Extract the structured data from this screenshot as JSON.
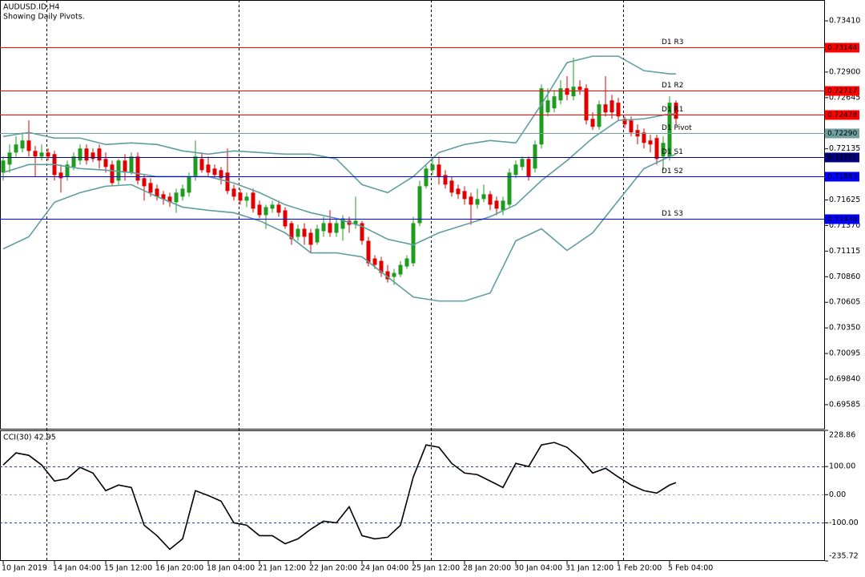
{
  "chart_data": [
    {
      "type": "candlestick",
      "title": "AUDUSD.ID,H4",
      "subtitle": "Showing Daily Pivots.",
      "up_color": "#1e9c1e",
      "down_color": "#e00000",
      "categories": [
        "10 Jan 2019",
        null,
        null,
        null,
        null,
        null,
        null,
        null,
        "14 Jan 04:00",
        null,
        null,
        null,
        null,
        null,
        null,
        null,
        "15 Jan 12:00",
        null,
        null,
        null,
        null,
        null,
        null,
        null,
        "16 Jan 20:00",
        null,
        null,
        null,
        null,
        null,
        null,
        null,
        "18 Jan 04:00",
        null,
        null,
        null,
        null,
        null,
        null,
        null,
        "21 Jan 12:00",
        null,
        null,
        null,
        null,
        null,
        null,
        null,
        "22 Jan 20:00",
        null,
        null,
        null,
        null,
        null,
        null,
        null,
        "24 Jan 04:00",
        null,
        null,
        null,
        null,
        null,
        null,
        null,
        "25 Jan 12:00",
        null,
        null,
        null,
        null,
        null,
        null,
        null,
        "28 Jan 20:00",
        null,
        null,
        null,
        null,
        null,
        null,
        null,
        "30 Jan 04:00",
        null,
        null,
        null,
        null,
        null,
        null,
        null,
        "31 Jan 12:00",
        null,
        null,
        null,
        null,
        null,
        null,
        null,
        "1 Feb 20:00",
        null,
        null,
        null,
        null,
        null,
        null,
        null,
        "5 Feb 04:00",
        null
      ],
      "open": [
        0.71898,
        0.71978,
        0.72098,
        0.72138,
        0.72218,
        0.72114,
        0.72058,
        0.72098,
        0.72082,
        0.71898,
        0.71858,
        0.71954,
        0.72018,
        0.72138,
        0.72098,
        0.72138,
        0.72034,
        0.71978,
        0.71818,
        0.72018,
        0.71898,
        0.72058,
        0.71842,
        0.71794,
        0.71738,
        0.71682,
        0.71658,
        0.71602,
        0.71658,
        0.71698,
        0.71858,
        0.72034,
        0.71978,
        0.71938,
        0.71922,
        0.71898,
        0.71738,
        0.71698,
        0.71618,
        0.71698,
        0.71578,
        0.71474,
        0.71538,
        0.71578,
        0.71522,
        0.71394,
        0.71258,
        0.71338,
        0.71298,
        0.71202,
        0.71314,
        0.71394,
        0.71298,
        0.71338,
        0.71418,
        0.71378,
        0.71394,
        0.71218,
        0.71042,
        0.71018,
        0.70914,
        0.70858,
        0.70882,
        0.70962,
        0.70994,
        0.71394,
        0.71762,
        0.71922,
        0.71978,
        0.71874,
        0.71818,
        0.71738,
        0.71714,
        0.71658,
        0.71578,
        0.71634,
        0.71682,
        0.71618,
        0.71522,
        0.71578,
        0.71874,
        0.71954,
        0.72034,
        0.71938,
        0.72178,
        0.72498,
        0.72538,
        0.72618,
        0.72738,
        0.72658,
        0.72754,
        0.72738,
        0.72434,
        0.72354,
        0.72578,
        0.72618,
        0.72594,
        0.72434,
        0.72418,
        0.72322,
        0.72298,
        0.72218,
        0.72242,
        0.72058,
        0.72058,
        0.72594
      ],
      "high": [
        0.72058,
        0.72178,
        0.72258,
        0.72298,
        0.72418,
        0.72162,
        0.72178,
        0.72138,
        0.72114,
        0.71978,
        0.72018,
        0.72098,
        0.72178,
        0.72178,
        0.72138,
        0.72178,
        0.72098,
        0.72018,
        0.72034,
        0.72082,
        0.72098,
        0.72098,
        0.71874,
        0.71842,
        0.71778,
        0.71714,
        0.71698,
        0.71738,
        0.71778,
        0.71898,
        0.72218,
        0.72098,
        0.72058,
        0.71978,
        0.71954,
        0.72138,
        0.71778,
        0.71738,
        0.71698,
        0.71738,
        0.71618,
        0.71578,
        0.71618,
        0.71618,
        0.71554,
        0.71418,
        0.71378,
        0.71394,
        0.71338,
        0.71378,
        0.71458,
        0.71522,
        0.71442,
        0.71474,
        0.71458,
        0.71658,
        0.71418,
        0.71258,
        0.71074,
        0.71058,
        0.70978,
        0.70938,
        0.71018,
        0.71074,
        0.71458,
        0.71818,
        0.71978,
        0.72058,
        0.72058,
        0.71922,
        0.71858,
        0.71778,
        0.71762,
        0.71698,
        0.71738,
        0.71778,
        0.71714,
        0.71658,
        0.71658,
        0.71938,
        0.72018,
        0.72058,
        0.72058,
        0.72218,
        0.72778,
        0.72738,
        0.72722,
        0.72818,
        0.72858,
        0.73042,
        0.72818,
        0.72778,
        0.72498,
        0.72618,
        0.72858,
        0.72674,
        0.72642,
        0.72458,
        0.72458,
        0.72378,
        0.72338,
        0.72274,
        0.72274,
        0.72258,
        0.72658,
        0.72618
      ],
      "low": [
        0.71818,
        0.71898,
        0.72058,
        0.72098,
        0.72058,
        0.71858,
        0.72018,
        0.72018,
        0.71818,
        0.71698,
        0.71818,
        0.71922,
        0.71978,
        0.71978,
        0.72002,
        0.71938,
        0.71898,
        0.71762,
        0.71778,
        0.71818,
        0.71874,
        0.71778,
        0.71618,
        0.71658,
        0.71618,
        0.71578,
        0.71554,
        0.71498,
        0.71618,
        0.71658,
        0.71818,
        0.71898,
        0.71858,
        0.71842,
        0.71778,
        0.71682,
        0.71618,
        0.71578,
        0.71554,
        0.71498,
        0.71442,
        0.71338,
        0.71498,
        0.71458,
        0.71338,
        0.71178,
        0.71218,
        0.71178,
        0.71098,
        0.71178,
        0.71258,
        0.71258,
        0.71258,
        0.71218,
        0.71298,
        0.71338,
        0.71178,
        0.70962,
        0.70938,
        0.70858,
        0.70802,
        0.70778,
        0.70858,
        0.70938,
        0.70962,
        0.71362,
        0.71738,
        0.71874,
        0.71778,
        0.71738,
        0.71658,
        0.71634,
        0.71578,
        0.71378,
        0.71538,
        0.71602,
        0.71522,
        0.71474,
        0.71474,
        0.71554,
        0.71842,
        0.71922,
        0.71818,
        0.71898,
        0.72138,
        0.72458,
        0.72498,
        0.72578,
        0.72618,
        0.72618,
        0.72674,
        0.72378,
        0.72322,
        0.72322,
        0.72458,
        0.72434,
        0.72418,
        0.72338,
        0.72258,
        0.72178,
        0.72138,
        0.72098,
        0.71978,
        0.71922,
        0.72018,
        0.72378
      ],
      "close": [
        0.72018,
        0.72098,
        0.72178,
        0.72218,
        0.72114,
        0.72058,
        0.72098,
        0.72058,
        0.71874,
        0.71842,
        0.71978,
        0.72058,
        0.72138,
        0.72018,
        0.72034,
        0.72018,
        0.71954,
        0.71794,
        0.72018,
        0.71898,
        0.72058,
        0.71818,
        0.71762,
        0.71698,
        0.71658,
        0.71634,
        0.71602,
        0.71698,
        0.71738,
        0.71858,
        0.72058,
        0.71922,
        0.71898,
        0.71874,
        0.71842,
        0.71714,
        0.71658,
        0.71618,
        0.71658,
        0.71538,
        0.71474,
        0.71554,
        0.71578,
        0.71498,
        0.71362,
        0.71234,
        0.71338,
        0.71258,
        0.71178,
        0.71338,
        0.71394,
        0.71298,
        0.71394,
        0.71442,
        0.71378,
        0.71418,
        0.71218,
        0.70994,
        0.70978,
        0.70898,
        0.70834,
        0.70898,
        0.70978,
        0.71042,
        0.71394,
        0.71762,
        0.71938,
        0.71978,
        0.71858,
        0.71778,
        0.71698,
        0.71682,
        0.71634,
        0.71578,
        0.71634,
        0.71682,
        0.71578,
        0.71538,
        0.71618,
        0.71898,
        0.71978,
        0.72034,
        0.71858,
        0.72178,
        0.72738,
        0.72618,
        0.72658,
        0.72738,
        0.72674,
        0.72754,
        0.72722,
        0.72418,
        0.72354,
        0.72578,
        0.72498,
        0.72498,
        0.72458,
        0.72378,
        0.72298,
        0.72258,
        0.72194,
        0.72178,
        0.72034,
        0.72194,
        0.72594,
        0.72434
      ],
      "bands": {
        "color": "#5f9ea0",
        "x": [
          0,
          4,
          8,
          12,
          16,
          20,
          24,
          28,
          32,
          36,
          40,
          44,
          48,
          52,
          56,
          60,
          64,
          68,
          72,
          76,
          80,
          84,
          88,
          92,
          96,
          100,
          104,
          105
        ],
        "series": [
          {
            "values": [
              0.72258,
              0.72298,
              0.72242,
              0.72242,
              0.72178,
              0.72194,
              0.72178,
              0.72114,
              0.72082,
              0.72114,
              0.72098,
              0.72082,
              0.72082,
              0.72034,
              0.71778,
              0.71698,
              0.71858,
              0.72098,
              0.72178,
              0.72218,
              0.72194,
              0.72578,
              0.72994,
              0.73058,
              0.73058,
              0.72914,
              0.72882,
              0.72882
            ]
          },
          {
            "values": [
              0.71898,
              0.71978,
              0.71978,
              0.71938,
              0.71922,
              0.71898,
              0.71858,
              0.71858,
              0.71858,
              0.71794,
              0.71698,
              0.71578,
              0.71498,
              0.71442,
              0.71362,
              0.71234,
              0.71178,
              0.71298,
              0.71378,
              0.71458,
              0.71578,
              0.71818,
              0.72018,
              0.72242,
              0.72418,
              0.72434,
              0.72482,
              0.72482
            ]
          },
          {
            "values": [
              0.71138,
              0.71258,
              0.71602,
              0.71698,
              0.71762,
              0.71778,
              0.71658,
              0.71554,
              0.71522,
              0.71498,
              0.71418,
              0.71298,
              0.71098,
              0.71098,
              0.71058,
              0.70858,
              0.70658,
              0.70618,
              0.70618,
              0.70698,
              0.71218,
              0.71338,
              0.71122,
              0.71298,
              0.71618,
              0.71938,
              0.72058,
              0.72082
            ]
          }
        ]
      },
      "pivots": [
        {
          "name": "D1 R3",
          "value": 0.73144,
          "value_label": "0.73144",
          "color": "#ff0000"
        },
        {
          "name": "D1 R2",
          "value": 0.72717,
          "value_label": "0.72717",
          "color": "#ff0000"
        },
        {
          "name": "D1 R1",
          "value": 0.72478,
          "value_label": "0.72478",
          "color": "#ff0000"
        },
        {
          "name": "D1 Pivot",
          "value": 0.7229,
          "value_label": "0.72290",
          "color": "#6f9f9f"
        },
        {
          "name": "D1 S1",
          "value": 0.72051,
          "value_label": "0.72051",
          "color": "#000080"
        },
        {
          "name": "D1 S2",
          "value": 0.71863,
          "value_label": "0.71863",
          "color": "#0000ff"
        },
        {
          "name": "D1 S3",
          "value": 0.71436,
          "value_label": "0.71436",
          "color": "#0000ff"
        }
      ],
      "ylim": [
        0.69345,
        0.73618
      ],
      "yticks": [
        {
          "value": 0.7341,
          "label": "0.73410"
        },
        {
          "value": 0.729,
          "label": "0.72900"
        },
        {
          "value": 0.72645,
          "label": "0.72645"
        },
        {
          "value": 0.72135,
          "label": "0.72135"
        },
        {
          "value": 0.71625,
          "label": "0.71625"
        },
        {
          "value": 0.7137,
          "label": "0.71370"
        },
        {
          "value": 0.71115,
          "label": "0.71115"
        },
        {
          "value": 0.7086,
          "label": "0.70860"
        },
        {
          "value": 0.70605,
          "label": "0.70605"
        },
        {
          "value": 0.7035,
          "label": "0.70350"
        },
        {
          "value": 0.70095,
          "label": "0.70095"
        },
        {
          "value": 0.6984,
          "label": "0.69840"
        },
        {
          "value": 0.69585,
          "label": "0.69585"
        }
      ]
    },
    {
      "type": "line",
      "title": "CCI(30) 42.95",
      "color": "#000000",
      "x": [
        0,
        2,
        4,
        6,
        8,
        10,
        12,
        14,
        16,
        18,
        20,
        22,
        24,
        26,
        28,
        30,
        32,
        34,
        36,
        38,
        40,
        42,
        44,
        46,
        48,
        50,
        52,
        54,
        56,
        58,
        60,
        62,
        64,
        66,
        68,
        70,
        72,
        74,
        76,
        78,
        80,
        82,
        84,
        86,
        88,
        90,
        92,
        94,
        96,
        98,
        100,
        102,
        104,
        105
      ],
      "values": [
        105.7,
        148.6,
        140,
        105.7,
        48.6,
        57.1,
        97.1,
        77.1,
        14.3,
        34.3,
        25.7,
        -108.6,
        -145.7,
        -194.3,
        -157.1,
        14.3,
        -2.9,
        -22.9,
        -100,
        -108.6,
        -145.7,
        -145.7,
        -174.3,
        -157.1,
        -122.9,
        -94.3,
        -100,
        -42.9,
        -145.7,
        -157.1,
        -151.4,
        -108.6,
        62.9,
        177.1,
        168.6,
        111.4,
        77.1,
        71.4,
        48.6,
        25.7,
        111.4,
        100,
        177.1,
        185.7,
        168.6,
        128.6,
        77.1,
        94.3,
        62.9,
        34.3,
        14.3,
        5.7,
        34.3,
        42.95
      ],
      "ylim": [
        -235.72,
        228.86
      ],
      "yticks": [
        {
          "value": 228.86,
          "label": "228.86"
        },
        {
          "value": 100,
          "label": "100.00"
        },
        {
          "value": 0,
          "label": "0.00"
        },
        {
          "value": -100,
          "label": "-100.00"
        },
        {
          "value": -235.72,
          "label": "-235.72"
        }
      ]
    }
  ]
}
